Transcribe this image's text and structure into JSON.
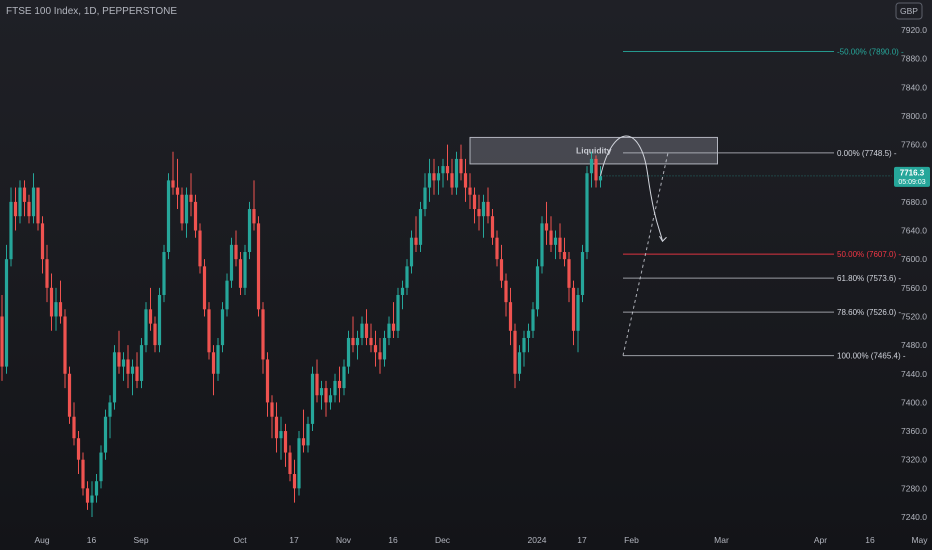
{
  "header": {
    "symbol_title": "FTSE 100 Index, 1D, PEPPERSTONE",
    "currency": "GBP"
  },
  "colors": {
    "up": "#26a69a",
    "down": "#ef5350",
    "fib_red": "#f23645",
    "fib_teal": "#26a69a",
    "fib_white": "#d1d4dc"
  },
  "chart_data": {
    "type": "candlestick",
    "title": "FTSE 100 Index, 1D, PEPPERSTONE",
    "ylim": [
      7220,
      7960
    ],
    "y_ticks": [
      7240,
      7280,
      7320,
      7360,
      7400,
      7440,
      7480,
      7520,
      7560,
      7600,
      7640,
      7680,
      7720,
      7760,
      7800,
      7840,
      7880,
      7920
    ],
    "x_ticks": [
      {
        "label": "Aug",
        "xi": 0
      },
      {
        "label": "16",
        "xi": 11
      },
      {
        "label": "Sep",
        "xi": 22
      },
      {
        "label": "Oct",
        "xi": 44
      },
      {
        "label": "17",
        "xi": 56
      },
      {
        "label": "Nov",
        "xi": 67
      },
      {
        "label": "16",
        "xi": 78
      },
      {
        "label": "Dec",
        "xi": 89
      },
      {
        "label": "2024",
        "xi": 110
      },
      {
        "label": "17",
        "xi": 120
      },
      {
        "label": "Feb",
        "xi": 131
      },
      {
        "label": "Mar",
        "xi": 151
      },
      {
        "label": "Apr",
        "xi": 173
      },
      {
        "label": "16",
        "xi": 184
      },
      {
        "label": "May",
        "xi": 195
      }
    ],
    "current_price": "7716.3",
    "countdown": "05:09:03",
    "fib_levels": [
      {
        "label": "-50.00% (7890.0)",
        "value": 7890.0,
        "color": "teal",
        "x_start_xi": 138
      },
      {
        "label": "0.00% (7748.5)",
        "value": 7748.5,
        "color": "white",
        "x_start_xi": 138
      },
      {
        "label": "50.00% (7607.0)",
        "value": 7607.0,
        "color": "red",
        "x_start_xi": 138
      },
      {
        "label": "61.80% (7573.6)",
        "value": 7573.6,
        "color": "white",
        "x_start_xi": 138
      },
      {
        "label": "78.60% (7526.0)",
        "value": 7526.0,
        "color": "white",
        "x_start_xi": 138
      },
      {
        "label": "100.00% (7465.4)",
        "value": 7465.4,
        "color": "white",
        "x_start_xi": 138
      }
    ],
    "zone": {
      "label": "Liquidity",
      "top": 7770,
      "bottom": 7733,
      "xi_start": 104,
      "xi_end": 159
    },
    "candles": [
      [
        7520,
        7550,
        7430,
        7450
      ],
      [
        7450,
        7620,
        7440,
        7600
      ],
      [
        7600,
        7700,
        7590,
        7680
      ],
      [
        7680,
        7700,
        7640,
        7660
      ],
      [
        7660,
        7710,
        7650,
        7700
      ],
      [
        7700,
        7710,
        7660,
        7680
      ],
      [
        7680,
        7690,
        7650,
        7660
      ],
      [
        7660,
        7720,
        7650,
        7700
      ],
      [
        7700,
        7700,
        7640,
        7650
      ],
      [
        7650,
        7660,
        7580,
        7600
      ],
      [
        7600,
        7620,
        7540,
        7560
      ],
      [
        7560,
        7580,
        7500,
        7520
      ],
      [
        7520,
        7560,
        7500,
        7540
      ],
      [
        7540,
        7570,
        7510,
        7520
      ],
      [
        7520,
        7530,
        7420,
        7440
      ],
      [
        7440,
        7450,
        7370,
        7380
      ],
      [
        7380,
        7400,
        7340,
        7350
      ],
      [
        7350,
        7360,
        7300,
        7320
      ],
      [
        7320,
        7330,
        7270,
        7280
      ],
      [
        7280,
        7290,
        7250,
        7260
      ],
      [
        7260,
        7290,
        7240,
        7270
      ],
      [
        7270,
        7300,
        7260,
        7290
      ],
      [
        7290,
        7340,
        7280,
        7330
      ],
      [
        7330,
        7390,
        7320,
        7380
      ],
      [
        7380,
        7410,
        7350,
        7400
      ],
      [
        7400,
        7480,
        7390,
        7470
      ],
      [
        7470,
        7500,
        7440,
        7450
      ],
      [
        7450,
        7470,
        7430,
        7460
      ],
      [
        7460,
        7480,
        7420,
        7440
      ],
      [
        7440,
        7460,
        7410,
        7450
      ],
      [
        7450,
        7470,
        7420,
        7430
      ],
      [
        7430,
        7490,
        7420,
        7480
      ],
      [
        7480,
        7540,
        7470,
        7530
      ],
      [
        7530,
        7560,
        7500,
        7510
      ],
      [
        7510,
        7520,
        7470,
        7480
      ],
      [
        7480,
        7560,
        7470,
        7550
      ],
      [
        7550,
        7620,
        7540,
        7610
      ],
      [
        7610,
        7720,
        7600,
        7710
      ],
      [
        7710,
        7750,
        7690,
        7700
      ],
      [
        7700,
        7740,
        7670,
        7690
      ],
      [
        7690,
        7700,
        7640,
        7650
      ],
      [
        7650,
        7700,
        7630,
        7690
      ],
      [
        7690,
        7720,
        7660,
        7680
      ],
      [
        7680,
        7690,
        7630,
        7640
      ],
      [
        7640,
        7650,
        7580,
        7590
      ],
      [
        7590,
        7600,
        7520,
        7530
      ],
      [
        7530,
        7540,
        7460,
        7470
      ],
      [
        7470,
        7480,
        7410,
        7440
      ],
      [
        7440,
        7490,
        7430,
        7480
      ],
      [
        7480,
        7540,
        7470,
        7530
      ],
      [
        7530,
        7580,
        7520,
        7570
      ],
      [
        7570,
        7630,
        7560,
        7620
      ],
      [
        7620,
        7640,
        7590,
        7600
      ],
      [
        7600,
        7610,
        7550,
        7560
      ],
      [
        7560,
        7620,
        7550,
        7610
      ],
      [
        7610,
        7680,
        7600,
        7670
      ],
      [
        7670,
        7710,
        7640,
        7650
      ],
      [
        7650,
        7660,
        7520,
        7530
      ],
      [
        7530,
        7540,
        7440,
        7460
      ],
      [
        7460,
        7470,
        7380,
        7400
      ],
      [
        7400,
        7410,
        7350,
        7380
      ],
      [
        7380,
        7400,
        7330,
        7350
      ],
      [
        7350,
        7380,
        7320,
        7360
      ],
      [
        7360,
        7370,
        7310,
        7330
      ],
      [
        7330,
        7340,
        7290,
        7300
      ],
      [
        7300,
        7320,
        7260,
        7280
      ],
      [
        7280,
        7360,
        7270,
        7350
      ],
      [
        7350,
        7390,
        7330,
        7340
      ],
      [
        7340,
        7380,
        7330,
        7370
      ],
      [
        7370,
        7450,
        7360,
        7440
      ],
      [
        7440,
        7460,
        7400,
        7410
      ],
      [
        7410,
        7430,
        7390,
        7420
      ],
      [
        7420,
        7430,
        7380,
        7400
      ],
      [
        7400,
        7420,
        7390,
        7410
      ],
      [
        7410,
        7440,
        7400,
        7430
      ],
      [
        7430,
        7450,
        7400,
        7420
      ],
      [
        7420,
        7460,
        7410,
        7450
      ],
      [
        7450,
        7500,
        7440,
        7490
      ],
      [
        7490,
        7520,
        7470,
        7480
      ],
      [
        7480,
        7500,
        7460,
        7490
      ],
      [
        7490,
        7520,
        7480,
        7510
      ],
      [
        7510,
        7530,
        7480,
        7490
      ],
      [
        7490,
        7510,
        7470,
        7480
      ],
      [
        7480,
        7500,
        7450,
        7470
      ],
      [
        7470,
        7490,
        7440,
        7460
      ],
      [
        7460,
        7500,
        7450,
        7490
      ],
      [
        7490,
        7520,
        7480,
        7510
      ],
      [
        7510,
        7540,
        7490,
        7500
      ],
      [
        7500,
        7560,
        7490,
        7550
      ],
      [
        7550,
        7570,
        7530,
        7560
      ],
      [
        7560,
        7600,
        7550,
        7590
      ],
      [
        7590,
        7640,
        7580,
        7630
      ],
      [
        7630,
        7660,
        7610,
        7620
      ],
      [
        7620,
        7680,
        7610,
        7670
      ],
      [
        7670,
        7720,
        7660,
        7700
      ],
      [
        7700,
        7740,
        7680,
        7720
      ],
      [
        7720,
        7740,
        7690,
        7710
      ],
      [
        7710,
        7730,
        7690,
        7720
      ],
      [
        7720,
        7740,
        7700,
        7730
      ],
      [
        7730,
        7760,
        7710,
        7720
      ],
      [
        7720,
        7740,
        7690,
        7700
      ],
      [
        7700,
        7750,
        7690,
        7740
      ],
      [
        7740,
        7760,
        7710,
        7720
      ],
      [
        7720,
        7740,
        7680,
        7700
      ],
      [
        7700,
        7720,
        7670,
        7690
      ],
      [
        7690,
        7700,
        7650,
        7670
      ],
      [
        7670,
        7690,
        7640,
        7660
      ],
      [
        7660,
        7690,
        7630,
        7680
      ],
      [
        7680,
        7700,
        7650,
        7660
      ],
      [
        7660,
        7670,
        7620,
        7630
      ],
      [
        7630,
        7640,
        7590,
        7600
      ],
      [
        7600,
        7620,
        7560,
        7570
      ],
      [
        7570,
        7580,
        7520,
        7540
      ],
      [
        7540,
        7560,
        7480,
        7500
      ],
      [
        7500,
        7510,
        7420,
        7440
      ],
      [
        7440,
        7480,
        7430,
        7470
      ],
      [
        7470,
        7500,
        7450,
        7490
      ],
      [
        7490,
        7510,
        7470,
        7500
      ],
      [
        7500,
        7540,
        7490,
        7530
      ],
      [
        7530,
        7600,
        7520,
        7590
      ],
      [
        7590,
        7660,
        7580,
        7650
      ],
      [
        7650,
        7680,
        7620,
        7640
      ],
      [
        7640,
        7660,
        7610,
        7620
      ],
      [
        7620,
        7640,
        7600,
        7630
      ],
      [
        7630,
        7650,
        7600,
        7610
      ],
      [
        7610,
        7630,
        7590,
        7600
      ],
      [
        7600,
        7610,
        7540,
        7560
      ],
      [
        7560,
        7570,
        7480,
        7500
      ],
      [
        7500,
        7560,
        7470,
        7550
      ],
      [
        7550,
        7620,
        7540,
        7610
      ],
      [
        7610,
        7730,
        7600,
        7720
      ],
      [
        7720,
        7750,
        7700,
        7740
      ],
      [
        7740,
        7745,
        7700,
        7710
      ],
      [
        7710,
        7730,
        7700,
        7716
      ]
    ]
  }
}
